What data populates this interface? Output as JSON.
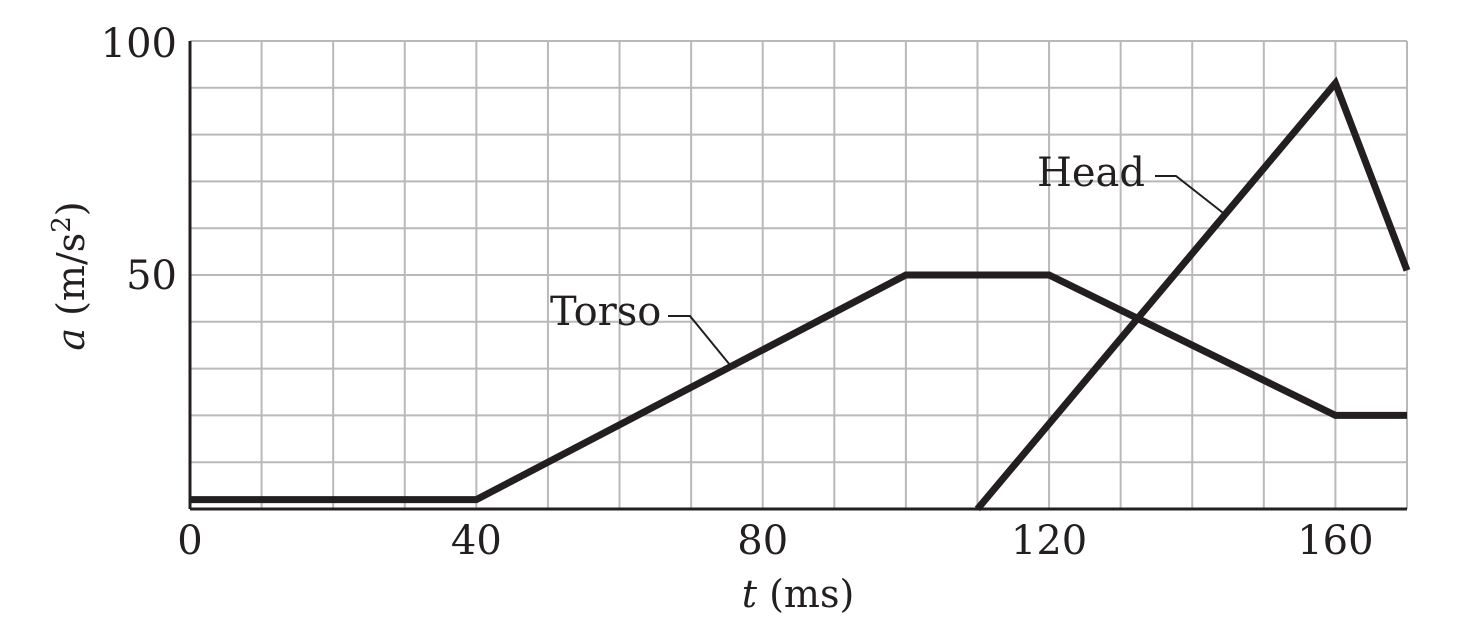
{
  "chart_data": {
    "type": "line",
    "title": "",
    "xlabel": {
      "symbol": "t",
      "unit": " (ms)"
    },
    "ylabel": {
      "symbol": "a",
      "unit_open": " (m/s",
      "unit_sup": "2",
      "unit_close": ")"
    },
    "xlim": [
      0,
      170
    ],
    "ylim": [
      0,
      100
    ],
    "x_ticks": [
      0,
      40,
      80,
      120,
      160
    ],
    "y_ticks": [
      50,
      100
    ],
    "x_grid_step": 10,
    "y_grid_step": 10,
    "grid": true,
    "series": [
      {
        "name": "Torso",
        "x": [
          0,
          40,
          100,
          120,
          160,
          170
        ],
        "y": [
          2,
          2,
          50,
          50,
          20,
          20
        ]
      },
      {
        "name": "Head",
        "x": [
          110,
          160,
          170
        ],
        "y": [
          0,
          91,
          51
        ]
      }
    ],
    "colors": {
      "line": "#231f20",
      "grid": "#b9b9b9",
      "axis": "#231f20"
    }
  }
}
